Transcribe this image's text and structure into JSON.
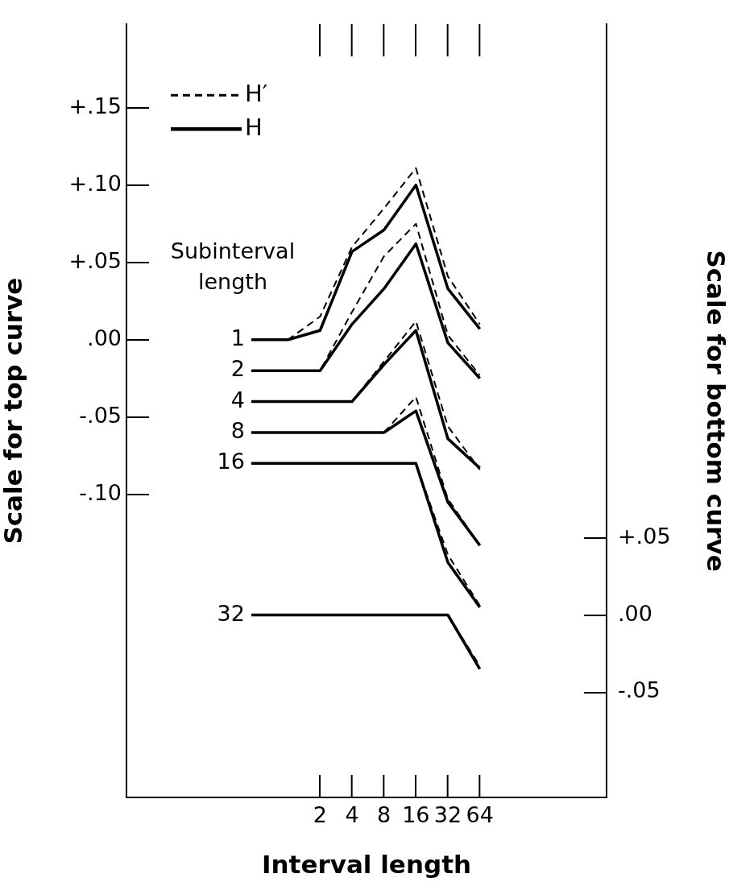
{
  "chart_data": {
    "type": "line",
    "xlabel": "Interval length",
    "ylabel": "Scale for top curve",
    "y2label": "Scale for bottom curve",
    "x": [
      0.45,
      1,
      2,
      4,
      8,
      16,
      32,
      64
    ],
    "log": "x",
    "marker": "none",
    "legend": "top left",
    "xlim": [
      0.03,
      1000
    ],
    "xticks": [
      2,
      4,
      8,
      16,
      32,
      64
    ],
    "ylim": [
      -0.296,
      0.204
    ],
    "yticks": [
      {
        "value": 0.15,
        "label": "+.15"
      },
      {
        "value": 0.1,
        "label": "+.10"
      },
      {
        "value": 0.05,
        "label": "+.05"
      },
      {
        "value": 0,
        "label": ".00"
      },
      {
        "value": -0.05,
        "label": "-.05"
      },
      {
        "value": -0.1,
        "label": "-.10"
      }
    ],
    "y2lim": [
      -0.118,
      0.382
    ],
    "y2ticks": [
      {
        "value": 0.05,
        "label": "+.05"
      },
      {
        "value": 0,
        "label": ".00"
      },
      {
        "value": -0.05,
        "label": "-.05"
      }
    ],
    "series": [
      {
        "name": "H′",
        "color": "#000000",
        "line_style": "dashed",
        "values": [
          0,
          0,
          0.015,
          0.06,
          0.085,
          0.111,
          0.041,
          0.01
        ]
      },
      {
        "name": "H",
        "color": "#000000",
        "line_style": "solid",
        "values": [
          0,
          0,
          0.006,
          0.057,
          0.071,
          0.1,
          0.033,
          0.007
        ]
      },
      {
        "color": "#000000",
        "line_style": "dashed",
        "values": [
          -0.02,
          -0.02,
          -0.02,
          0.018,
          0.054,
          0.075,
          0.003,
          -0.023
        ]
      },
      {
        "color": "#000000",
        "line_style": "solid",
        "values": [
          -0.02,
          -0.02,
          -0.02,
          0.01,
          0.033,
          0.062,
          -0.002,
          -0.025
        ]
      },
      {
        "color": "#000000",
        "line_style": "dashed",
        "values": [
          -0.04,
          -0.04,
          -0.04,
          -0.04,
          -0.014,
          0.012,
          -0.056,
          -0.084
        ]
      },
      {
        "color": "#000000",
        "line_style": "solid",
        "values": [
          -0.04,
          -0.04,
          -0.04,
          -0.04,
          -0.016,
          0.006,
          -0.064,
          -0.083
        ]
      },
      {
        "color": "#000000",
        "line_style": "dashed",
        "values": [
          -0.06,
          -0.06,
          -0.06,
          -0.06,
          -0.06,
          -0.037,
          -0.103,
          -0.133
        ]
      },
      {
        "color": "#000000",
        "line_style": "solid",
        "values": [
          -0.06,
          -0.06,
          -0.06,
          -0.06,
          -0.06,
          -0.046,
          -0.105,
          -0.133
        ]
      },
      {
        "color": "#000000",
        "line_style": "dashed",
        "values": [
          -0.08,
          -0.08,
          -0.08,
          -0.08,
          -0.08,
          -0.08,
          -0.139,
          -0.172
        ]
      },
      {
        "color": "#000000",
        "line_style": "solid",
        "values": [
          -0.08,
          -0.08,
          -0.08,
          -0.08,
          -0.08,
          -0.08,
          -0.144,
          -0.173
        ]
      },
      {
        "color": "#000000",
        "line_style": "dashed",
        "axis": "y2",
        "values": [
          null,
          null,
          null,
          null,
          null,
          null,
          0,
          -0.033
        ]
      },
      {
        "color": "#000000",
        "line_style": "solid",
        "axis": "y2",
        "values": [
          0,
          0,
          0,
          0,
          0,
          0,
          0,
          -0.035
        ]
      }
    ],
    "annotations": [
      "Subinterval length",
      "1",
      "2",
      "4",
      "8",
      "16",
      "32"
    ]
  }
}
